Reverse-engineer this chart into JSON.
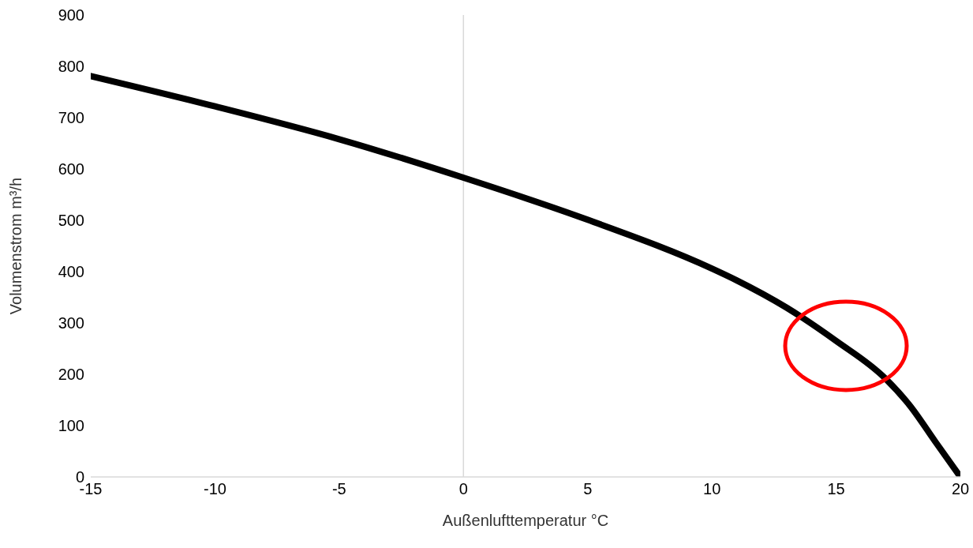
{
  "chart_data": {
    "type": "line",
    "xlabel": "Außenlufttemperatur °C",
    "ylabel": "Volumenstrom m³/h",
    "x": [
      -15,
      -10,
      -5,
      0,
      5,
      10,
      11,
      13,
      15,
      17,
      18,
      19,
      20
    ],
    "series": [
      {
        "color": "#000000",
        "values": [
          781,
          722,
          658,
          583,
          501,
          406,
          383,
          330,
          265,
          191,
          137,
          68,
          0
        ]
      }
    ],
    "xlim": [
      -15,
      20
    ],
    "xticks": [
      -15,
      -10,
      -5,
      0,
      5,
      10,
      15,
      20
    ],
    "ylim": [
      0,
      900
    ],
    "yticks": [
      0,
      100,
      200,
      300,
      400,
      500,
      600,
      700,
      800,
      900
    ],
    "ref_lines": [
      {
        "axis": "x",
        "value": 0,
        "color": "#d9d9d9"
      }
    ],
    "grid": false,
    "legend": false,
    "marker": "none",
    "line_style": "solid"
  }
}
